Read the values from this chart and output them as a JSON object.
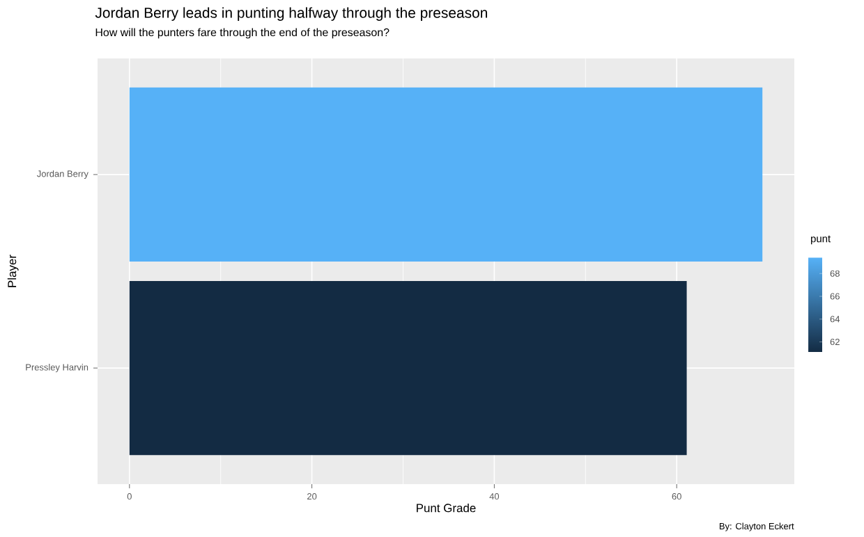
{
  "chart_data": {
    "type": "bar",
    "orientation": "horizontal",
    "title": "Jordan Berry leads in punting halfway through the preseason",
    "subtitle": "How will the punters fare through the end of the preseason?",
    "xlabel": "Punt Grade",
    "ylabel": "Player",
    "clabel": "punt",
    "categories": [
      "Jordan Berry",
      "Pressley Harvin"
    ],
    "values": [
      69.4,
      61.1
    ],
    "colors": [
      "#56b1f7",
      "#132b43"
    ],
    "xlim": [
      -3.5,
      72.9
    ],
    "xticks": [
      0,
      20,
      40,
      60
    ],
    "clim": [
      61.1,
      69.4
    ],
    "cticks": [
      62,
      64,
      66,
      68
    ],
    "grid": true,
    "annotations": [
      "By: Clayton Eckert"
    ]
  }
}
